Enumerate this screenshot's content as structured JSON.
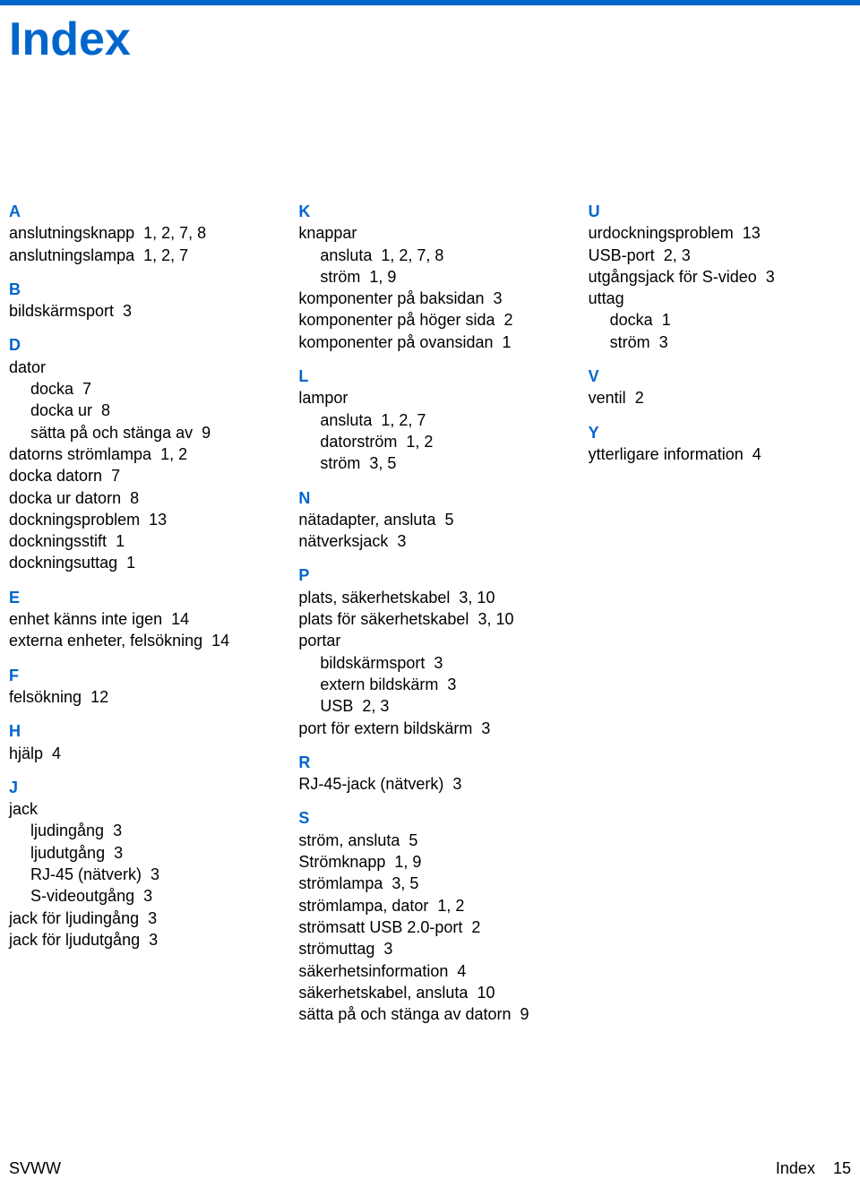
{
  "colors": {
    "accent": "#0066cc",
    "text": "#000000",
    "background": "#ffffff",
    "topbar": "#0066cc"
  },
  "title": "Index",
  "columns": [
    [
      {
        "type": "letter",
        "text": "A",
        "first": true
      },
      {
        "type": "entry",
        "term": "anslutningsknapp",
        "pages": "1,  2,  7,  8"
      },
      {
        "type": "entry",
        "term": "anslutningslampa",
        "pages": "1,  2,  7"
      },
      {
        "type": "letter",
        "text": "B"
      },
      {
        "type": "entry",
        "term": "bildskärmsport",
        "pages": "3"
      },
      {
        "type": "letter",
        "text": "D"
      },
      {
        "type": "entry",
        "term": "dator",
        "pages": ""
      },
      {
        "type": "sub",
        "term": "docka",
        "pages": "7"
      },
      {
        "type": "sub",
        "term": "docka ur",
        "pages": "8"
      },
      {
        "type": "sub",
        "term": "sätta på och stänga av",
        "pages": "9"
      },
      {
        "type": "entry",
        "term": "datorns strömlampa",
        "pages": "1,  2"
      },
      {
        "type": "entry",
        "term": "docka datorn",
        "pages": "7"
      },
      {
        "type": "entry",
        "term": "docka ur datorn",
        "pages": "8"
      },
      {
        "type": "entry",
        "term": "dockningsproblem",
        "pages": "13"
      },
      {
        "type": "entry",
        "term": "dockningsstift",
        "pages": "1"
      },
      {
        "type": "entry",
        "term": "dockningsuttag",
        "pages": "1"
      },
      {
        "type": "letter",
        "text": "E"
      },
      {
        "type": "entry",
        "term": "enhet känns inte igen",
        "pages": "14"
      },
      {
        "type": "entry",
        "term": "externa enheter, felsökning",
        "pages": "14"
      },
      {
        "type": "letter",
        "text": "F"
      },
      {
        "type": "entry",
        "term": "felsökning",
        "pages": "12"
      },
      {
        "type": "letter",
        "text": "H"
      },
      {
        "type": "entry",
        "term": "hjälp",
        "pages": "4"
      },
      {
        "type": "letter",
        "text": "J"
      },
      {
        "type": "entry",
        "term": "jack",
        "pages": ""
      },
      {
        "type": "sub",
        "term": "ljudingång",
        "pages": "3"
      },
      {
        "type": "sub",
        "term": "ljudutgång",
        "pages": "3"
      },
      {
        "type": "sub",
        "term": "RJ-45 (nätverk)",
        "pages": "3"
      },
      {
        "type": "sub",
        "term": "S-videoutgång",
        "pages": "3"
      },
      {
        "type": "entry",
        "term": "jack för ljudingång",
        "pages": "3"
      },
      {
        "type": "entry",
        "term": "jack för ljudutgång",
        "pages": "3"
      }
    ],
    [
      {
        "type": "letter",
        "text": "K",
        "first": true
      },
      {
        "type": "entry",
        "term": "knappar",
        "pages": ""
      },
      {
        "type": "sub",
        "term": "ansluta",
        "pages": "1,  2,  7,  8"
      },
      {
        "type": "sub",
        "term": "ström",
        "pages": "1,  9"
      },
      {
        "type": "entry",
        "term": "komponenter på baksidan",
        "pages": "3"
      },
      {
        "type": "entry",
        "term": "komponenter på höger sida",
        "pages": "2"
      },
      {
        "type": "entry",
        "term": "komponenter på ovansidan",
        "pages": "1"
      },
      {
        "type": "letter",
        "text": "L"
      },
      {
        "type": "entry",
        "term": "lampor",
        "pages": ""
      },
      {
        "type": "sub",
        "term": "ansluta",
        "pages": "1,  2,  7"
      },
      {
        "type": "sub",
        "term": "datorström",
        "pages": "1,  2"
      },
      {
        "type": "sub",
        "term": "ström",
        "pages": "3,  5"
      },
      {
        "type": "letter",
        "text": "N"
      },
      {
        "type": "entry",
        "term": "nätadapter, ansluta",
        "pages": "5"
      },
      {
        "type": "entry",
        "term": "nätverksjack",
        "pages": "3"
      },
      {
        "type": "letter",
        "text": "P"
      },
      {
        "type": "entry",
        "term": "plats, säkerhetskabel",
        "pages": "3,  10"
      },
      {
        "type": "entry",
        "term": "plats för säkerhetskabel",
        "pages": "3,  10"
      },
      {
        "type": "entry",
        "term": "portar",
        "pages": ""
      },
      {
        "type": "sub",
        "term": "bildskärmsport",
        "pages": "3"
      },
      {
        "type": "sub",
        "term": "extern bildskärm",
        "pages": "3"
      },
      {
        "type": "sub",
        "term": "USB",
        "pages": "2,  3"
      },
      {
        "type": "entry",
        "term": "port för extern bildskärm",
        "pages": "3"
      },
      {
        "type": "letter",
        "text": "R"
      },
      {
        "type": "entry",
        "term": "RJ-45-jack (nätverk)",
        "pages": "3"
      },
      {
        "type": "letter",
        "text": "S"
      },
      {
        "type": "entry",
        "term": "ström, ansluta",
        "pages": "5"
      },
      {
        "type": "entry",
        "term": "Strömknapp",
        "pages": "1,  9"
      },
      {
        "type": "entry",
        "term": "strömlampa",
        "pages": "3,  5"
      },
      {
        "type": "entry",
        "term": "strömlampa, dator",
        "pages": "1,  2"
      },
      {
        "type": "entry",
        "term": "strömsatt USB 2.0-port",
        "pages": "2"
      },
      {
        "type": "entry",
        "term": "strömuttag",
        "pages": "3"
      },
      {
        "type": "entry",
        "term": "säkerhetsinformation",
        "pages": "4"
      },
      {
        "type": "entry",
        "term": "säkerhetskabel, ansluta",
        "pages": "10"
      },
      {
        "type": "entry",
        "term": "sätta på och stänga av datorn",
        "pages": "9"
      }
    ],
    [
      {
        "type": "letter",
        "text": "U",
        "first": true
      },
      {
        "type": "entry",
        "term": "urdockningsproblem",
        "pages": "13"
      },
      {
        "type": "entry",
        "term": "USB-port",
        "pages": "2,  3"
      },
      {
        "type": "entry",
        "term": "utgångsjack för S-video",
        "pages": "3"
      },
      {
        "type": "entry",
        "term": "uttag",
        "pages": ""
      },
      {
        "type": "sub",
        "term": "docka",
        "pages": "1"
      },
      {
        "type": "sub",
        "term": "ström",
        "pages": "3"
      },
      {
        "type": "letter",
        "text": "V"
      },
      {
        "type": "entry",
        "term": "ventil",
        "pages": "2"
      },
      {
        "type": "letter",
        "text": "Y"
      },
      {
        "type": "entry",
        "term": "ytterligare information",
        "pages": "4"
      }
    ]
  ],
  "footer": {
    "left": "SVWW",
    "right_label": "Index",
    "right_page": "15"
  }
}
